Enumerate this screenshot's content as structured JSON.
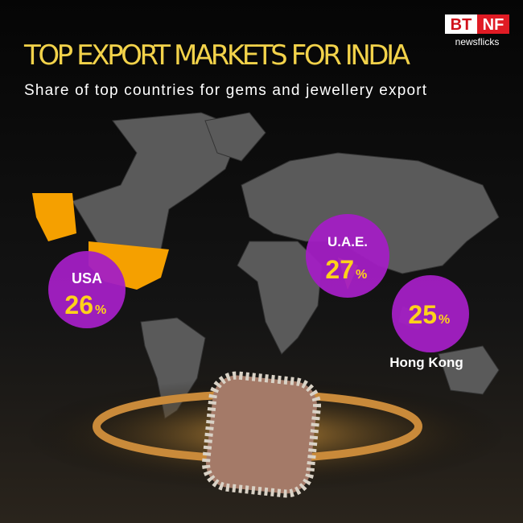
{
  "header": {
    "title": "TOP EXPORT MARKETS FOR INDIA",
    "subtitle": "Share of top countries for gems and jewellery export"
  },
  "logo": {
    "left": "BT",
    "right": "NF",
    "tagline": "newsflicks"
  },
  "unit": "%",
  "markets": [
    {
      "name": "USA",
      "value": 26
    },
    {
      "name": "U.A.E.",
      "value": 27
    },
    {
      "name": "Hong Kong",
      "value": 25
    }
  ]
}
